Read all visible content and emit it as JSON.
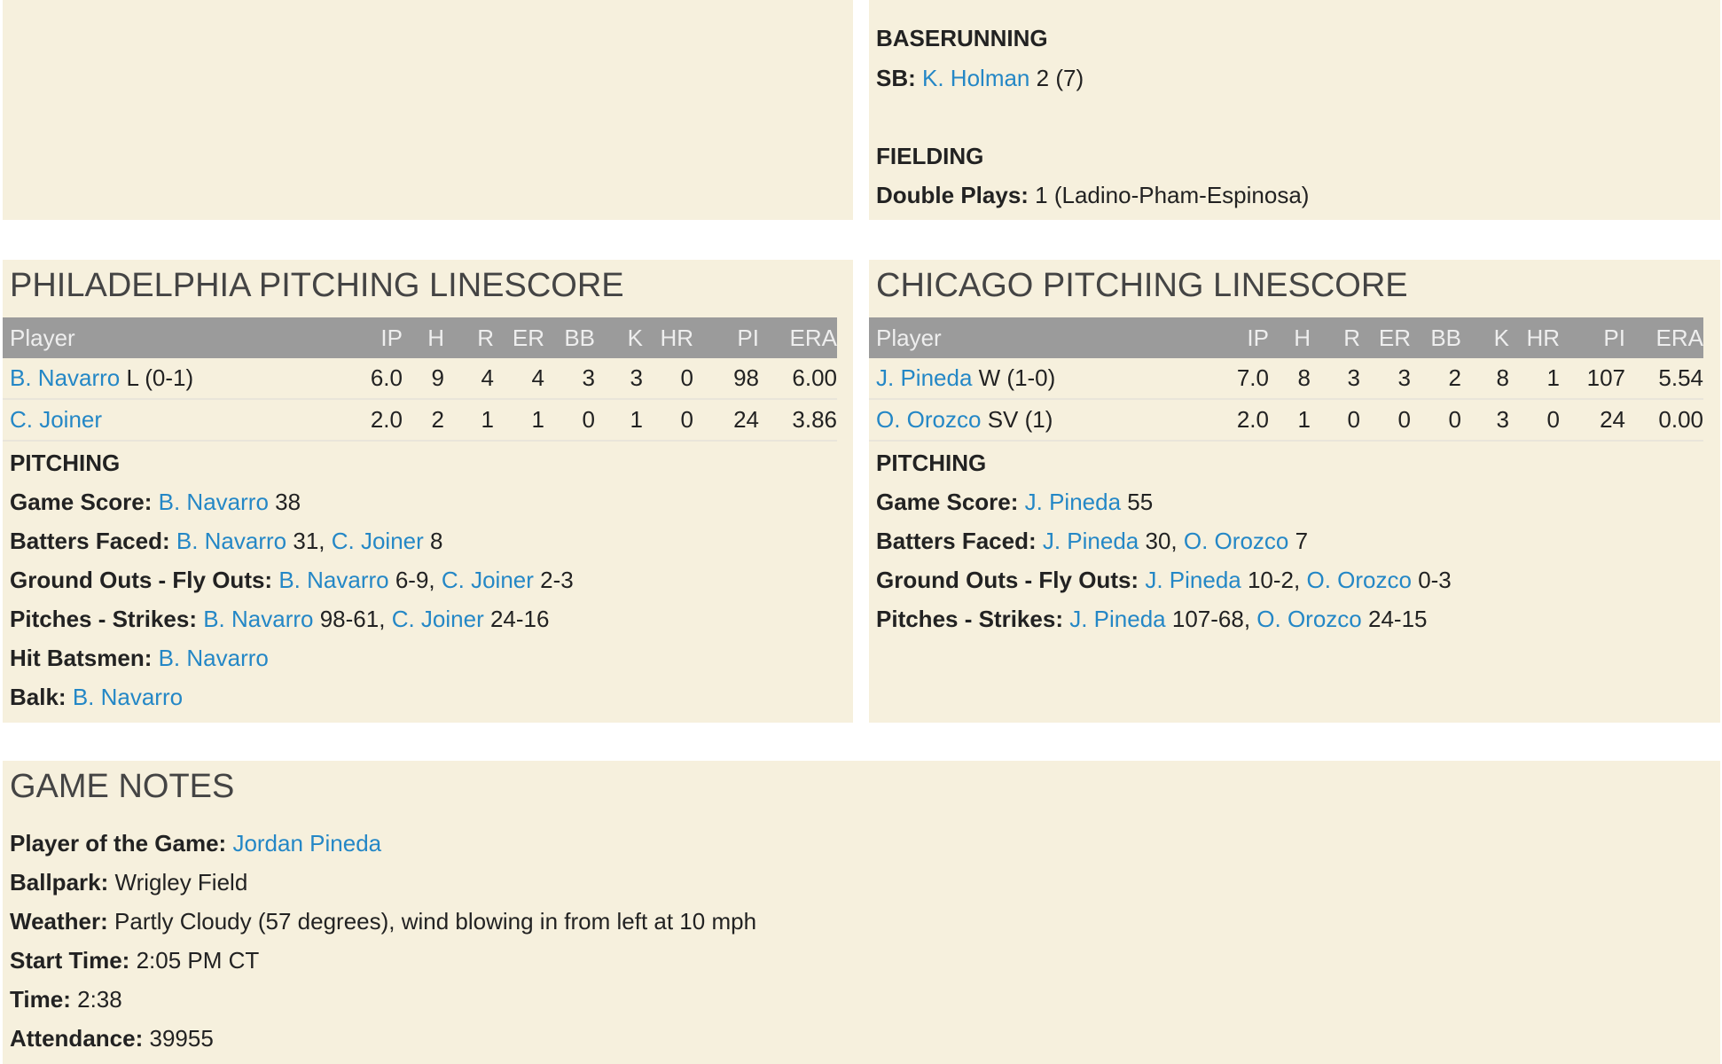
{
  "top_right": {
    "baserunning_heading": "BASERUNNING",
    "sb_label": "SB:",
    "sb_player": "K. Holman",
    "sb_value": "2 (7)",
    "fielding_heading": "FIELDING",
    "dp_label": "Double Plays:",
    "dp_value": "1 (Ladino-Pham-Espinosa)"
  },
  "columns": [
    "Player",
    "IP",
    "H",
    "R",
    "ER",
    "BB",
    "K",
    "HR",
    "PI",
    "ERA"
  ],
  "philadelphia": {
    "title": "PHILADELPHIA PITCHING LINESCORE",
    "rows": [
      {
        "player": "B. Navarro",
        "note": "L (0-1)",
        "stats": [
          "6.0",
          "9",
          "4",
          "4",
          "3",
          "3",
          "0",
          "98",
          "6.00"
        ]
      },
      {
        "player": "C. Joiner",
        "note": "",
        "stats": [
          "2.0",
          "2",
          "1",
          "1",
          "0",
          "1",
          "0",
          "24",
          "3.86"
        ]
      }
    ],
    "pitching_heading": "PITCHING",
    "game_score": {
      "label": "Game Score:",
      "p1": "B. Navarro",
      "v1": "38"
    },
    "batters_faced": {
      "label": "Batters Faced:",
      "p1": "B. Navarro",
      "v1": "31,",
      "p2": "C. Joiner",
      "v2": "8"
    },
    "go_fo": {
      "label": "Ground Outs - Fly Outs:",
      "p1": "B. Navarro",
      "v1": "6-9,",
      "p2": "C. Joiner",
      "v2": "2-3"
    },
    "pitches_strikes": {
      "label": "Pitches - Strikes:",
      "p1": "B. Navarro",
      "v1": "98-61,",
      "p2": "C. Joiner",
      "v2": "24-16"
    },
    "hit_batsmen": {
      "label": "Hit Batsmen:",
      "p1": "B. Navarro"
    },
    "balk": {
      "label": "Balk:",
      "p1": "B. Navarro"
    }
  },
  "chicago": {
    "title": "CHICAGO PITCHING LINESCORE",
    "rows": [
      {
        "player": "J. Pineda",
        "note": "W (1-0)",
        "stats": [
          "7.0",
          "8",
          "3",
          "3",
          "2",
          "8",
          "1",
          "107",
          "5.54"
        ]
      },
      {
        "player": "O. Orozco",
        "note": "SV (1)",
        "stats": [
          "2.0",
          "1",
          "0",
          "0",
          "0",
          "3",
          "0",
          "24",
          "0.00"
        ]
      }
    ],
    "pitching_heading": "PITCHING",
    "game_score": {
      "label": "Game Score:",
      "p1": "J. Pineda",
      "v1": "55"
    },
    "batters_faced": {
      "label": "Batters Faced:",
      "p1": "J. Pineda",
      "v1": "30,",
      "p2": "O. Orozco",
      "v2": "7"
    },
    "go_fo": {
      "label": "Ground Outs - Fly Outs:",
      "p1": "J. Pineda",
      "v1": "10-2,",
      "p2": "O. Orozco",
      "v2": "0-3"
    },
    "pitches_strikes": {
      "label": "Pitches - Strikes:",
      "p1": "J. Pineda",
      "v1": "107-68,",
      "p2": "O. Orozco",
      "v2": "24-15"
    }
  },
  "game_notes": {
    "title": "GAME NOTES",
    "potg_label": "Player of the Game:",
    "potg_value": "Jordan Pineda",
    "ballpark_label": "Ballpark:",
    "ballpark_value": "Wrigley Field",
    "weather_label": "Weather:",
    "weather_value": "Partly Cloudy (57 degrees), wind blowing in from left at 10 mph",
    "start_label": "Start Time:",
    "start_value": "2:05 PM CT",
    "time_label": "Time:",
    "time_value": "2:38",
    "attendance_label": "Attendance:",
    "attendance_value": "39955"
  },
  "colors": {
    "panel_bg": "#f6f0dd",
    "header_bg": "#9b9b9b",
    "link": "#2487c6"
  }
}
